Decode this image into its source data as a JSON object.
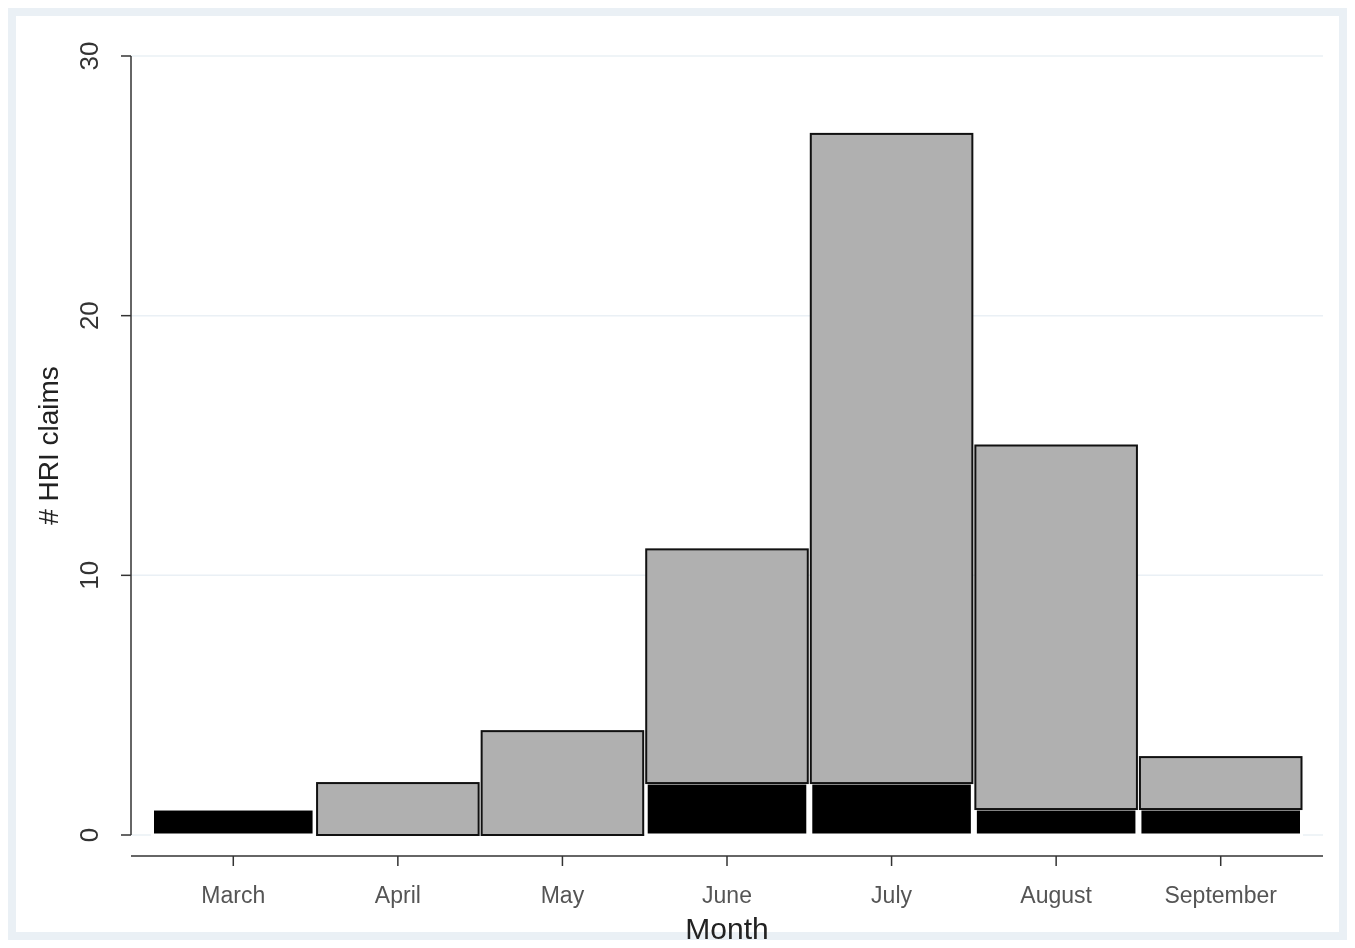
{
  "chart_data": {
    "type": "bar",
    "xlabel": "Month",
    "ylabel": "# HRI claims",
    "categories": [
      "March",
      "April",
      "May",
      "June",
      "July",
      "August",
      "September"
    ],
    "series": [
      {
        "color": "#000000",
        "values": [
          1,
          0,
          0,
          2,
          2,
          1,
          1
        ]
      },
      {
        "color": "#b0b0b0",
        "values": [
          0,
          2,
          4,
          9,
          25,
          14,
          2
        ]
      }
    ],
    "stacked": true,
    "ylim": [
      0,
      30
    ],
    "yticks": [
      0,
      10,
      20,
      30
    ],
    "grid": "y"
  }
}
